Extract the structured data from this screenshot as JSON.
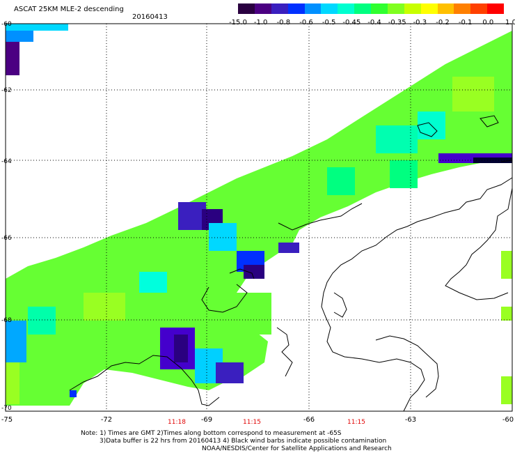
{
  "title": "ASCAT 25KM MLE-2 descending",
  "date": "20160413",
  "colorbar": {
    "labels": [
      "-15.0",
      "-1.0",
      "-0.8",
      "-0.6",
      "-0.5",
      "-0.45",
      "-0.4",
      "-0.35",
      "-0.3",
      "-0.2",
      "-0.1",
      "0.0",
      "1.0"
    ],
    "colors": [
      "#2a0040",
      "#4b0082",
      "#3a1fbf",
      "#0030ff",
      "#0090ff",
      "#00d8ff",
      "#00ffd0",
      "#00ff80",
      "#30ff30",
      "#80ff20",
      "#c8ff00",
      "#ffff00",
      "#ffc000",
      "#ff8000",
      "#ff4000",
      "#ff0000"
    ]
  },
  "latitudes": [
    "-60",
    "-62",
    "-64",
    "-66",
    "-68",
    "-70"
  ],
  "longitudes": [
    "-75",
    "-72",
    "-69",
    "-66",
    "-63",
    "-60"
  ],
  "times": [
    "11:18",
    "11:15",
    "11:15"
  ],
  "notes": [
    "Note: 1) Times are GMT 2)Times along bottom correspond to measurement at -65S",
    "3)Data buffer is 22 hrs from 20160413 4) Black wind barbs indicate possible contamination",
    "NOAA/NESDIS/Center for Satellite Applications and Research"
  ]
}
